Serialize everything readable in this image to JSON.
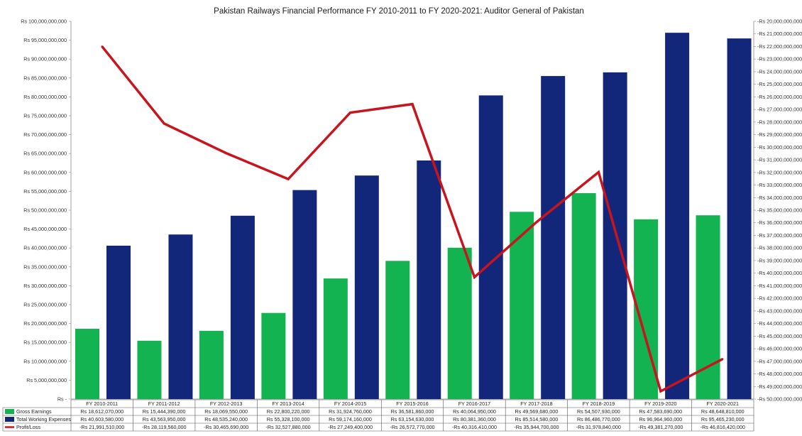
{
  "chart_data": {
    "type": "bar",
    "title": "Pakistan Railways Financial Performance FY 2010-2011 to FY 2020-2021: Auditor General of Pakistan",
    "categories": [
      "FY 2010-2011",
      "FY 2011-2012",
      "FY 2012-2013",
      "FY 2013-2014",
      "FY 2014-2015",
      "FY 2015-2016",
      "FY 2016-2017",
      "FY 2017-2018",
      "FY 2018-2019",
      "FY 2019-2020",
      "FY 2020-2021"
    ],
    "series": [
      {
        "name": "Gross Earnings",
        "type": "bar",
        "axis": "left",
        "color": "#12b350",
        "values": [
          18612070000,
          15444390000,
          18069550000,
          22800220000,
          31924760000,
          36581860000,
          40064950000,
          49569680000,
          54507930000,
          47583690000,
          48648810000
        ],
        "labels": [
          "Rs 18,612,070,000",
          "Rs 15,444,390,000",
          "Rs 18,069,550,000",
          "Rs 22,800,220,000",
          "Rs 31,924,760,000",
          "Rs 36,581,860,000",
          "Rs 40,064,950,000",
          "Rs 49,569,680,000",
          "Rs 54,507,930,000",
          "Rs 47,583,690,000",
          "Rs 48,648,810,000"
        ]
      },
      {
        "name": "Total Working Expenses",
        "type": "bar",
        "axis": "left",
        "color": "#13277a",
        "values": [
          40603580000,
          43563950000,
          48535240000,
          55328100000,
          59174160000,
          63154630000,
          80381360000,
          85514580000,
          86486770000,
          96964960000,
          95465230000
        ],
        "labels": [
          "Rs 40,603,580,000",
          "Rs 43,563,950,000",
          "Rs 48,535,240,000",
          "Rs 55,328,100,000",
          "Rs 59,174,160,000",
          "Rs 63,154,630,000",
          "Rs 80,381,360,000",
          "Rs 85,514,580,000",
          "Rs 86,486,770,000",
          "Rs 96,964,960,000",
          "Rs 95,465,230,000"
        ]
      },
      {
        "name": "Profit/Loss",
        "type": "line",
        "axis": "right",
        "color": "#c8141c",
        "values": [
          -21991510000,
          -28119560000,
          -30465690000,
          -32527880000,
          -27249400000,
          -26572770000,
          -40316410000,
          -35944700000,
          -31978840000,
          -49381270000,
          -46816420000
        ],
        "labels": [
          "-Rs 21,991,510,000",
          "-Rs 28,119,560,000",
          "-Rs 30,465,690,000",
          "-Rs 32,527,880,000",
          "-Rs 27,249,400,000",
          "-Rs 26,572,770,000",
          "-Rs 40,316,410,000",
          "-Rs 35,944,700,000",
          "-Rs 31,978,840,000",
          "-Rs 49,381,270,000",
          "-Rs 46,816,420,000"
        ]
      }
    ],
    "y_left": {
      "ylim": [
        0,
        100000000000
      ],
      "ticks": [
        0,
        5000000000,
        10000000000,
        15000000000,
        20000000000,
        25000000000,
        30000000000,
        35000000000,
        40000000000,
        45000000000,
        50000000000,
        55000000000,
        60000000000,
        65000000000,
        70000000000,
        75000000000,
        80000000000,
        85000000000,
        90000000000,
        95000000000,
        100000000000
      ],
      "tick_labels": [
        "Rs -",
        "Rs 5,000,000,000",
        "Rs 10,000,000,000",
        "Rs 15,000,000,000",
        "Rs 20,000,000,000",
        "Rs 25,000,000,000",
        "Rs 30,000,000,000",
        "Rs 35,000,000,000",
        "Rs 40,000,000,000",
        "Rs 45,000,000,000",
        "Rs 50,000,000,000",
        "Rs 55,000,000,000",
        "Rs 60,000,000,000",
        "Rs 65,000,000,000",
        "Rs 70,000,000,000",
        "Rs 75,000,000,000",
        "Rs 80,000,000,000",
        "Rs 85,000,000,000",
        "Rs 90,000,000,000",
        "Rs 95,000,000,000",
        "Rs 100,000,000,000"
      ]
    },
    "y_right": {
      "ylim": [
        -50000000000,
        -20000000000
      ],
      "ticks": [
        -20000000000,
        -21000000000,
        -22000000000,
        -23000000000,
        -24000000000,
        -25000000000,
        -26000000000,
        -27000000000,
        -28000000000,
        -29000000000,
        -30000000000,
        -31000000000,
        -32000000000,
        -33000000000,
        -34000000000,
        -35000000000,
        -36000000000,
        -37000000000,
        -38000000000,
        -39000000000,
        -40000000000,
        -41000000000,
        -42000000000,
        -43000000000,
        -44000000000,
        -45000000000,
        -46000000000,
        -47000000000,
        -48000000000,
        -49000000000,
        -50000000000
      ],
      "tick_labels": [
        "-Rs 20,000,000,000",
        "-Rs 21,000,000,000",
        "-Rs 22,000,000,000",
        "-Rs 23,000,000,000",
        "-Rs 24,000,000,000",
        "-Rs 25,000,000,000",
        "-Rs 26,000,000,000",
        "-Rs 27,000,000,000",
        "-Rs 28,000,000,000",
        "-Rs 29,000,000,000",
        "-Rs 30,000,000,000",
        "-Rs 31,000,000,000",
        "-Rs 32,000,000,000",
        "-Rs 33,000,000,000",
        "-Rs 34,000,000,000",
        "-Rs 35,000,000,000",
        "-Rs 36,000,000,000",
        "-Rs 37,000,000,000",
        "-Rs 38,000,000,000",
        "-Rs 39,000,000,000",
        "-Rs 40,000,000,000",
        "-Rs 41,000,000,000",
        "-Rs 42,000,000,000",
        "-Rs 43,000,000,000",
        "-Rs 44,000,000,000",
        "-Rs 45,000,000,000",
        "-Rs 46,000,000,000",
        "-Rs 47,000,000,000",
        "-Rs 48,000,000,000",
        "-Rs 49,000,000,000",
        "-Rs 50,000,000,000"
      ]
    },
    "grid": false,
    "legend": "data-table-below"
  }
}
